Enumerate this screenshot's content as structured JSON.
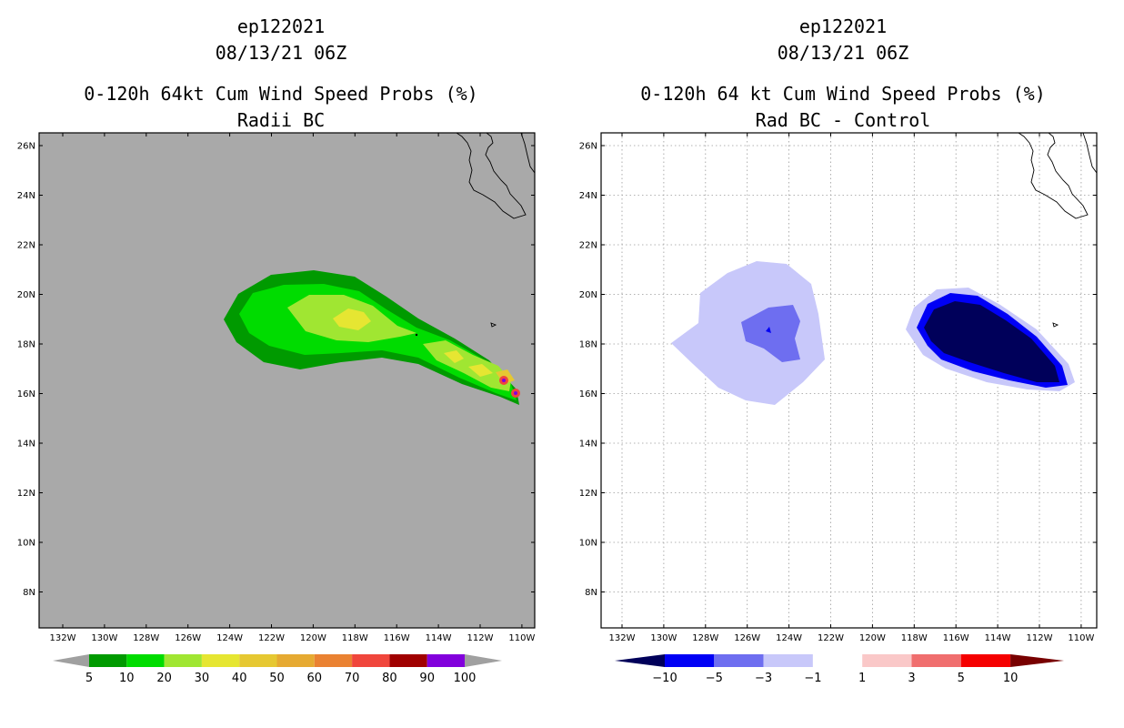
{
  "left_panel": {
    "title_lines": [
      "ep122021",
      "08/13/21 06Z",
      "0-120h 64kt Cum Wind Speed Probs (%)",
      "Radii BC"
    ],
    "colorbar": {
      "labels": [
        "5",
        "10",
        "20",
        "30",
        "40",
        "50",
        "60",
        "70",
        "80",
        "90",
        "100"
      ],
      "colors": [
        "#009a00",
        "#00dc00",
        "#a0e632",
        "#e6e632",
        "#e6c832",
        "#e6aa32",
        "#ea8232",
        "#f0463c",
        "#a00000",
        "#8200dc"
      ],
      "end_color": "#a0a0a0"
    },
    "background_color": "#a9a9a9"
  },
  "right_panel": {
    "title_lines": [
      "ep122021",
      "08/13/21 06Z",
      "0-120h 64 kt Cum Wind Speed Probs (%)",
      "Rad BC - Control"
    ],
    "colorbar": {
      "labels": [
        "−10",
        "−5",
        "−3",
        "−1",
        "1",
        "3",
        "5",
        "10"
      ],
      "colors": [
        "#00005a",
        "#0000f5",
        "#6e6ef0",
        "#c8c8fa",
        "#ffffff",
        "#fac8c8",
        "#f06e6e",
        "#f50000",
        "#780000"
      ]
    }
  },
  "axes": {
    "lat_labels": [
      "26N",
      "24N",
      "22N",
      "20N",
      "18N",
      "16N",
      "14N",
      "12N",
      "10N",
      "8N"
    ],
    "lon_labels": [
      "132W",
      "130W",
      "128W",
      "126W",
      "124W",
      "122W",
      "120W",
      "118W",
      "116W",
      "114W",
      "112W",
      "110W"
    ]
  }
}
